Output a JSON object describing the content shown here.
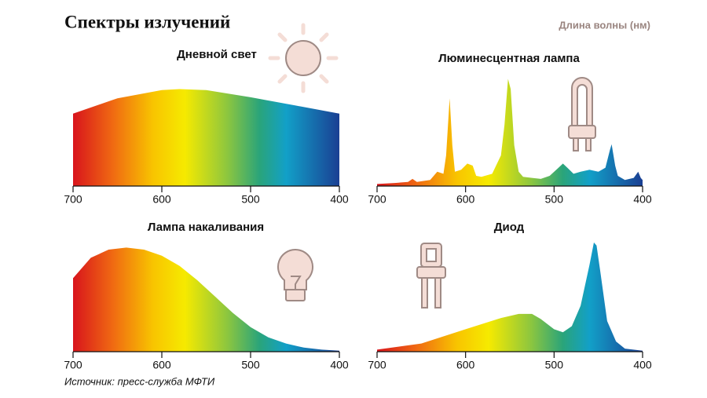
{
  "title": "Спектры излучений",
  "subtitle": "Длина волны (нм)",
  "source": "Источник: пресс-служба МФТИ",
  "chart_data": [
    {
      "type": "area",
      "title": "Дневной свет",
      "x": [
        700,
        650,
        600,
        580,
        550,
        500,
        450,
        400
      ],
      "values": [
        71,
        86,
        94,
        95,
        94,
        87,
        79,
        71
      ],
      "xlim": [
        700,
        400
      ],
      "xticks": [
        700,
        600,
        500,
        400
      ],
      "ylim": [
        0,
        110
      ]
    },
    {
      "type": "area",
      "title": "Люминесцентная лампа",
      "x": [
        700,
        680,
        665,
        660,
        655,
        640,
        632,
        625,
        622,
        618,
        615,
        612,
        605,
        598,
        592,
        588,
        582,
        570,
        560,
        556,
        552,
        549,
        545,
        540,
        535,
        525,
        515,
        505,
        495,
        490,
        485,
        478,
        470,
        460,
        450,
        442,
        437,
        435,
        431,
        428,
        420,
        410,
        405,
        402,
        400
      ],
      "values": [
        2,
        3,
        4,
        7,
        4,
        6,
        14,
        12,
        30,
        86,
        40,
        14,
        16,
        22,
        20,
        10,
        9,
        12,
        30,
        60,
        105,
        95,
        40,
        14,
        9,
        8,
        7,
        10,
        18,
        22,
        18,
        12,
        14,
        16,
        14,
        18,
        35,
        41,
        20,
        10,
        6,
        8,
        14,
        8,
        6
      ],
      "xlim": [
        700,
        400
      ],
      "xticks": [
        700,
        600,
        500,
        400
      ],
      "ylim": [
        0,
        110
      ]
    },
    {
      "type": "area",
      "title": "Лампа накаливания",
      "x": [
        700,
        680,
        660,
        640,
        620,
        600,
        580,
        560,
        540,
        520,
        500,
        480,
        460,
        440,
        420,
        400
      ],
      "values": [
        72,
        92,
        100,
        102,
        100,
        94,
        84,
        70,
        54,
        38,
        24,
        14,
        8,
        4,
        2,
        1
      ],
      "xlim": [
        700,
        400
      ],
      "xticks": [
        700,
        600,
        500,
        400
      ],
      "ylim": [
        0,
        110
      ]
    },
    {
      "type": "area",
      "title": "Диод",
      "x": [
        700,
        650,
        600,
        560,
        540,
        525,
        515,
        500,
        490,
        480,
        470,
        460,
        455,
        452,
        448,
        440,
        430,
        420,
        400
      ],
      "values": [
        2,
        8,
        22,
        33,
        37,
        37,
        32,
        22,
        19,
        25,
        45,
        85,
        107,
        104,
        80,
        30,
        10,
        3,
        1
      ],
      "xlim": [
        700,
        400
      ],
      "xticks": [
        700,
        600,
        500,
        400
      ],
      "ylim": [
        0,
        110
      ]
    }
  ]
}
